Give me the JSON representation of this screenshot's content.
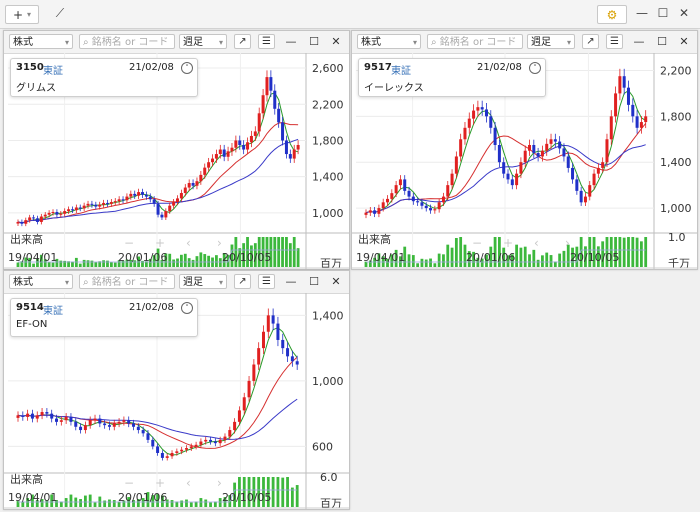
{
  "toolbar": {
    "add_label": "+",
    "add_caret": "▾",
    "chart_icon": "⟋",
    "gear_icon": "⚙",
    "minimize": "—",
    "maximize": "☐",
    "close": "✕"
  },
  "panel_controls": {
    "market_select": "株式",
    "search_placeholder": "銘柄名 or コード",
    "period_select": "週足",
    "caret": "▾",
    "expand_icon": "↗",
    "menu_icon": "☰",
    "minimize": "—",
    "maximize": "☐",
    "close": "✕"
  },
  "panels": [
    {
      "code": "3150",
      "exchange": "東証",
      "date": "21/02/08",
      "name": "グリムス",
      "y_ticks": [
        "2,600",
        "2,200",
        "1,800",
        "1,400",
        "1,000"
      ],
      "volume_label": "出来高",
      "volume_unit": "百万",
      "volume_tick": "",
      "x_ticks": [
        "19/04/01",
        "20/01/06",
        "20/10/05"
      ]
    },
    {
      "code": "9517",
      "exchange": "東証",
      "date": "21/02/08",
      "name": "イーレックス",
      "y_ticks": [
        "2,200",
        "1,800",
        "1,400",
        "1,000"
      ],
      "volume_label": "出来高",
      "volume_unit": "千万",
      "volume_tick": "1.0",
      "x_ticks": [
        "19/04/01",
        "20/01/06",
        "20/10/05"
      ]
    },
    {
      "code": "9514",
      "exchange": "東証",
      "date": "21/02/08",
      "name": "EF-ON",
      "y_ticks": [
        "1,400",
        "1,000",
        "600"
      ],
      "volume_label": "出来高",
      "volume_unit": "百万",
      "volume_tick": "6.0",
      "x_ticks": [
        "19/04/01",
        "20/01/06",
        "20/10/05"
      ]
    }
  ],
  "overlay_nav": [
    "−",
    "+",
    "‹",
    "›"
  ],
  "chart_data": [
    {
      "type": "candlestick",
      "title": "3150 グリムス",
      "ylim": [
        800,
        2700
      ],
      "ma_short_color": "#2a9a2a",
      "ma_mid_color": "#d63030",
      "ma_long_color": "#3a3ac8",
      "close": [
        900,
        880,
        920,
        950,
        940,
        900,
        960,
        980,
        1000,
        1010,
        980,
        990,
        1020,
        1040,
        1030,
        1060,
        1050,
        1080,
        1100,
        1090,
        1070,
        1090,
        1110,
        1100,
        1120,
        1130,
        1150,
        1140,
        1180,
        1210,
        1190,
        1230,
        1200,
        1180,
        1150,
        1100,
        980,
        950,
        1020,
        1080,
        1120,
        1160,
        1220,
        1280,
        1330,
        1300,
        1350,
        1420,
        1500,
        1560,
        1600,
        1650,
        1700,
        1620,
        1680,
        1720,
        1800,
        1750,
        1700,
        1780,
        1850,
        1900,
        2100,
        2300,
        2500,
        2350,
        2150,
        2000,
        1800,
        1650,
        1600,
        1700,
        1750
      ]
    },
    {
      "type": "candlestick",
      "title": "9517 イーレックス",
      "ylim": [
        800,
        2300
      ],
      "ma_short_color": "#2a9a2a",
      "ma_mid_color": "#d63030",
      "ma_long_color": "#3a3ac8",
      "close": [
        960,
        980,
        950,
        1000,
        1050,
        1080,
        1130,
        1200,
        1250,
        1150,
        1100,
        1060,
        1050,
        1020,
        1000,
        980,
        990,
        1050,
        1100,
        1200,
        1300,
        1450,
        1600,
        1700,
        1780,
        1850,
        1880,
        1860,
        1800,
        1700,
        1550,
        1400,
        1300,
        1250,
        1200,
        1300,
        1400,
        1500,
        1550,
        1480,
        1450,
        1500,
        1560,
        1600,
        1580,
        1520,
        1450,
        1350,
        1250,
        1150,
        1050,
        1100,
        1200,
        1300,
        1350,
        1400,
        1600,
        1800,
        2000,
        2150,
        2050,
        1900,
        1800,
        1700,
        1750,
        1800
      ]
    },
    {
      "type": "candlestick",
      "title": "9514 EF-ON",
      "ylim": [
        450,
        1500
      ],
      "ma_short_color": "#2a9a2a",
      "ma_mid_color": "#d63030",
      "ma_long_color": "#3a3ac8",
      "close": [
        790,
        780,
        800,
        770,
        790,
        810,
        800,
        770,
        750,
        760,
        780,
        750,
        720,
        700,
        730,
        760,
        770,
        740,
        730,
        720,
        740,
        750,
        760,
        740,
        720,
        700,
        680,
        640,
        600,
        560,
        530,
        540,
        560,
        570,
        580,
        590,
        600,
        610,
        630,
        640,
        630,
        620,
        640,
        660,
        700,
        750,
        820,
        900,
        1000,
        1100,
        1200,
        1300,
        1400,
        1350,
        1250,
        1200,
        1150,
        1120,
        1100
      ]
    }
  ]
}
